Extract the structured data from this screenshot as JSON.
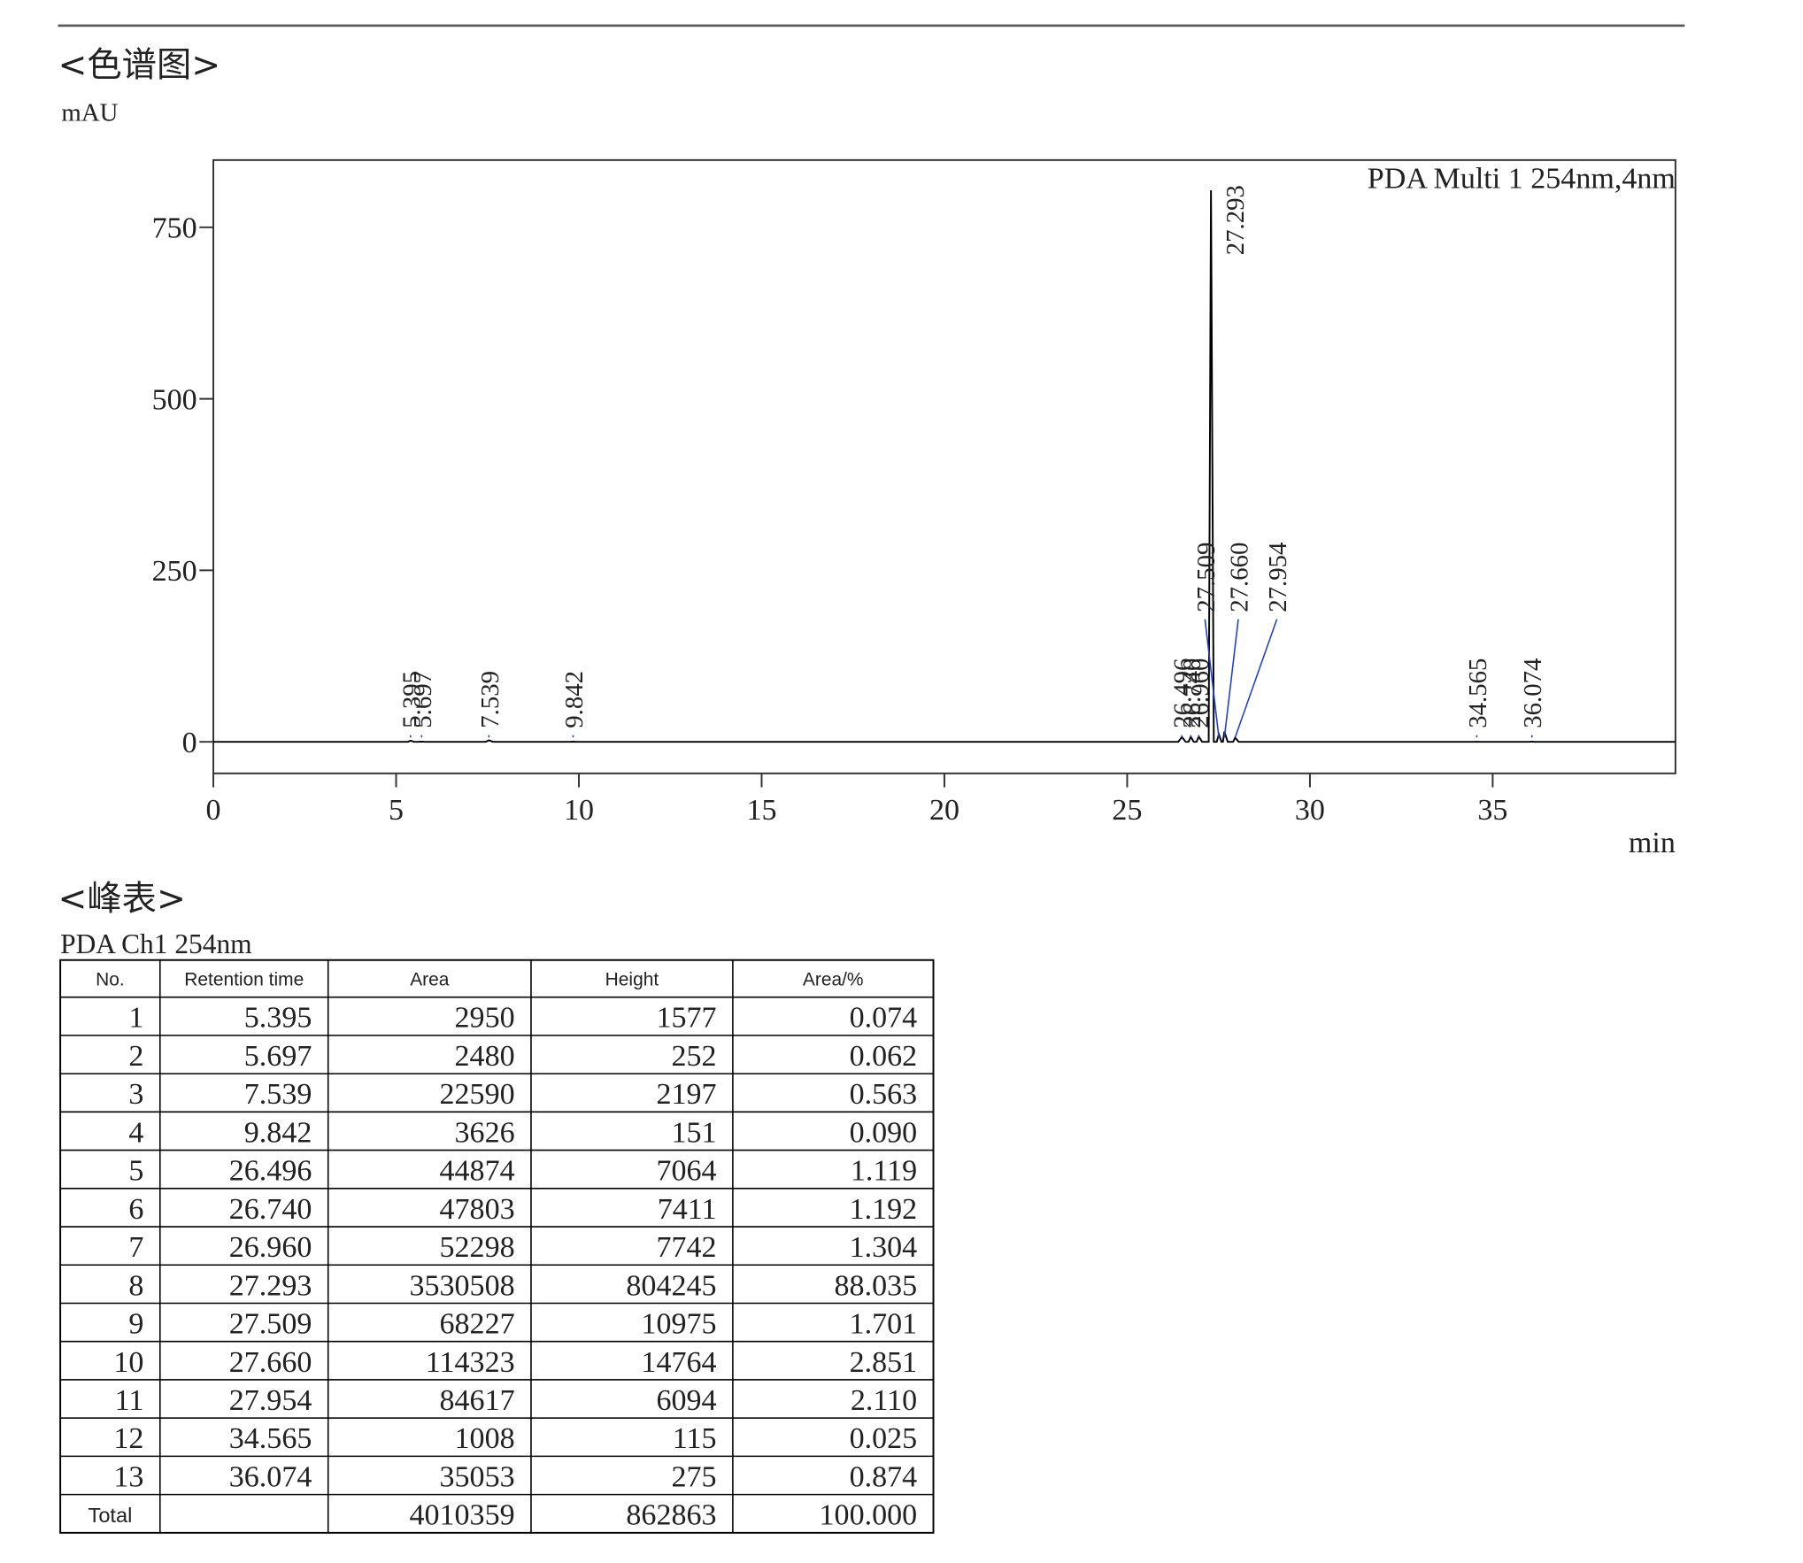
{
  "header": {
    "chart_heading": "<色谱图>",
    "table_heading": "<峰表>",
    "table_channel": "PDA Ch1 254nm"
  },
  "chart_data": {
    "type": "line",
    "y_label": "mAU",
    "x_label": "min",
    "legend_text": "PDA Multi 1 254nm,4nm",
    "xlim": [
      0,
      40
    ],
    "xticks": [
      0,
      5,
      10,
      15,
      20,
      25,
      30,
      35
    ],
    "ylim": [
      -46,
      848
    ],
    "yticks": [
      0,
      250,
      500,
      750
    ],
    "color": "#000000",
    "x": [
      0,
      5.32,
      5.395,
      5.5,
      5.6,
      5.697,
      5.8,
      7.45,
      7.539,
      7.65,
      9.75,
      9.842,
      9.95,
      26.4,
      26.496,
      26.6,
      26.68,
      26.74,
      26.82,
      26.9,
      26.96,
      27.05,
      27.23,
      27.293,
      27.37,
      27.45,
      27.509,
      27.58,
      27.62,
      27.66,
      27.75,
      27.9,
      27.954,
      28.05,
      34.5,
      34.565,
      34.65,
      36.0,
      36.074,
      36.15,
      40
    ],
    "y": [
      0,
      0,
      1.6,
      0,
      0,
      0.3,
      0,
      0,
      2.2,
      0,
      0,
      0.2,
      0,
      0,
      7.1,
      0,
      0,
      7.4,
      0,
      0,
      7.7,
      0,
      0,
      804,
      0,
      0,
      11,
      0,
      0,
      14.8,
      0,
      0,
      6.1,
      0,
      0,
      0.1,
      0,
      0,
      0.3,
      0,
      0
    ],
    "peaks": [
      {
        "x": 5.395,
        "label": "5.395"
      },
      {
        "x": 5.697,
        "label": "5.697"
      },
      {
        "x": 7.539,
        "label": "7.539"
      },
      {
        "x": 9.842,
        "label": "9.842"
      },
      {
        "x": 26.496,
        "label": "26.496"
      },
      {
        "x": 26.74,
        "label": "26.740"
      },
      {
        "x": 26.96,
        "label": "26.960"
      },
      {
        "x": 27.293,
        "label": "27.293"
      },
      {
        "x": 27.509,
        "label": "27.509"
      },
      {
        "x": 27.66,
        "label": "27.660"
      },
      {
        "x": 27.954,
        "label": "27.954"
      },
      {
        "x": 34.565,
        "label": "34.565"
      },
      {
        "x": 36.074,
        "label": "36.074"
      }
    ]
  },
  "table": {
    "columns": [
      "No.",
      "Retention time",
      "Area",
      "Height",
      "Area/%"
    ],
    "rows": [
      [
        "1",
        "5.395",
        "2950",
        "1577",
        "0.074"
      ],
      [
        "2",
        "5.697",
        "2480",
        "252",
        "0.062"
      ],
      [
        "3",
        "7.539",
        "22590",
        "2197",
        "0.563"
      ],
      [
        "4",
        "9.842",
        "3626",
        "151",
        "0.090"
      ],
      [
        "5",
        "26.496",
        "44874",
        "7064",
        "1.119"
      ],
      [
        "6",
        "26.740",
        "47803",
        "7411",
        "1.192"
      ],
      [
        "7",
        "26.960",
        "52298",
        "7742",
        "1.304"
      ],
      [
        "8",
        "27.293",
        "3530508",
        "804245",
        "88.035"
      ],
      [
        "9",
        "27.509",
        "68227",
        "10975",
        "1.701"
      ],
      [
        "10",
        "27.660",
        "114323",
        "14764",
        "2.851"
      ],
      [
        "11",
        "27.954",
        "84617",
        "6094",
        "2.110"
      ],
      [
        "12",
        "34.565",
        "1008",
        "115",
        "0.025"
      ],
      [
        "13",
        "36.074",
        "35053",
        "275",
        "0.874"
      ]
    ],
    "total": [
      "Total",
      "4010359",
      "862863",
      "100.000"
    ]
  }
}
